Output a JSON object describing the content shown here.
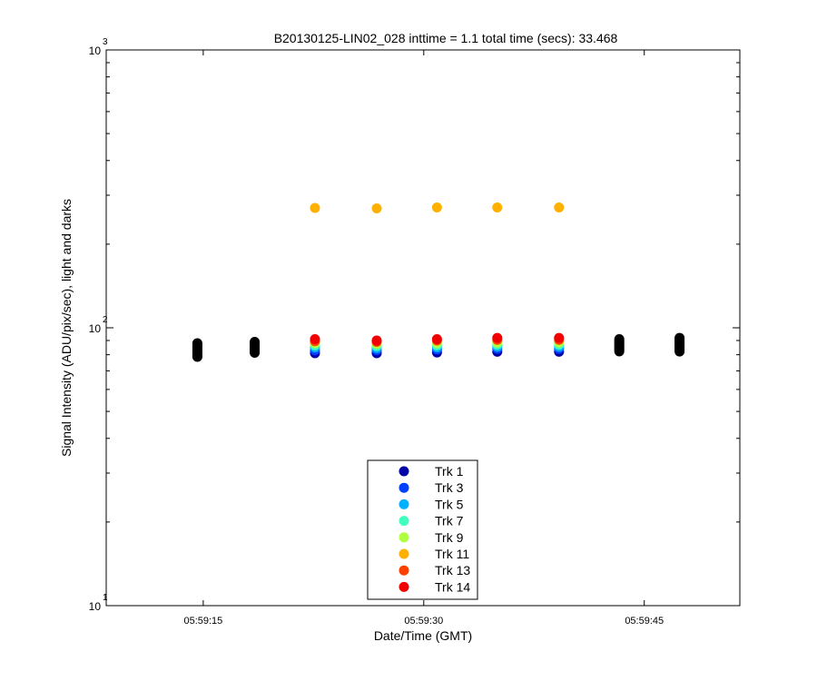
{
  "chart_data": {
    "type": "scatter",
    "title": "B20130125-LIN02_028 inttime = 1.1 total time (secs): 33.468",
    "xlabel": "Date/Time (GMT)",
    "ylabel": "Signal Intensity (ADU/pix/sec), light and darks",
    "yscale": "log",
    "ylim": [
      10,
      1000
    ],
    "xlim": [
      "05:59:08.4",
      "05:59:51.5"
    ],
    "x_ticks": [
      "05:59:15",
      "05:59:30",
      "05:59:45"
    ],
    "y_ticks": [
      {
        "base": "10",
        "exp": "1",
        "value": 10
      },
      {
        "base": "10",
        "exp": "2",
        "value": 100
      },
      {
        "base": "10",
        "exp": "3",
        "value": 1000
      }
    ],
    "legend_position": "bottom-center",
    "series": [
      {
        "name": "Trk 1",
        "color": "#0000a8",
        "x": [
          "05:59:22.6",
          "05:59:26.8",
          "05:59:30.9",
          "05:59:35.0",
          "05:59:39.2"
        ],
        "y": [
          81,
          81,
          81.5,
          82,
          82
        ]
      },
      {
        "name": "Trk 3",
        "color": "#0040ff",
        "x": [
          "05:59:22.6",
          "05:59:26.8",
          "05:59:30.9",
          "05:59:35.0",
          "05:59:39.2"
        ],
        "y": [
          83,
          83,
          83.5,
          84,
          84
        ]
      },
      {
        "name": "Trk 5",
        "color": "#00b0ff",
        "x": [
          "05:59:22.6",
          "05:59:26.8",
          "05:59:30.9",
          "05:59:35.0",
          "05:59:39.2"
        ],
        "y": [
          85,
          84.5,
          85,
          85.5,
          85.5
        ]
      },
      {
        "name": "Trk 7",
        "color": "#40ffc0",
        "x": [
          "05:59:22.6",
          "05:59:26.8",
          "05:59:30.9",
          "05:59:35.0",
          "05:59:39.2"
        ],
        "y": [
          86.5,
          86,
          86.5,
          87,
          87
        ]
      },
      {
        "name": "Trk 9",
        "color": "#b0ff40",
        "x": [
          "05:59:22.6",
          "05:59:26.8",
          "05:59:30.9",
          "05:59:35.0",
          "05:59:39.2"
        ],
        "y": [
          88,
          87.5,
          88,
          88.5,
          88.5
        ]
      },
      {
        "name": "Trk 11",
        "color": "#ffb000",
        "x": [
          "05:59:22.6",
          "05:59:26.8",
          "05:59:30.9",
          "05:59:35.0",
          "05:59:39.2"
        ],
        "y": [
          270,
          269,
          271,
          271,
          271
        ]
      },
      {
        "name": "Trk 13",
        "color": "#ff4000",
        "x": [
          "05:59:22.6",
          "05:59:26.8",
          "05:59:30.9",
          "05:59:35.0",
          "05:59:39.2"
        ],
        "y": [
          89.5,
          89,
          90,
          90.5,
          90.5
        ]
      },
      {
        "name": "Trk 14",
        "color": "#f00000",
        "x": [
          "05:59:22.6",
          "05:59:26.8",
          "05:59:30.9",
          "05:59:35.0",
          "05:59:39.2"
        ],
        "y": [
          91,
          90,
          91,
          92,
          92
        ]
      }
    ],
    "darks": {
      "color": "#000000",
      "x": [
        "05:59:14.6",
        "05:59:18.5",
        "05:59:43.3",
        "05:59:47.4"
      ],
      "y_min": [
        78,
        81,
        82,
        82
      ],
      "y_max": [
        88,
        89,
        91,
        92
      ]
    }
  }
}
